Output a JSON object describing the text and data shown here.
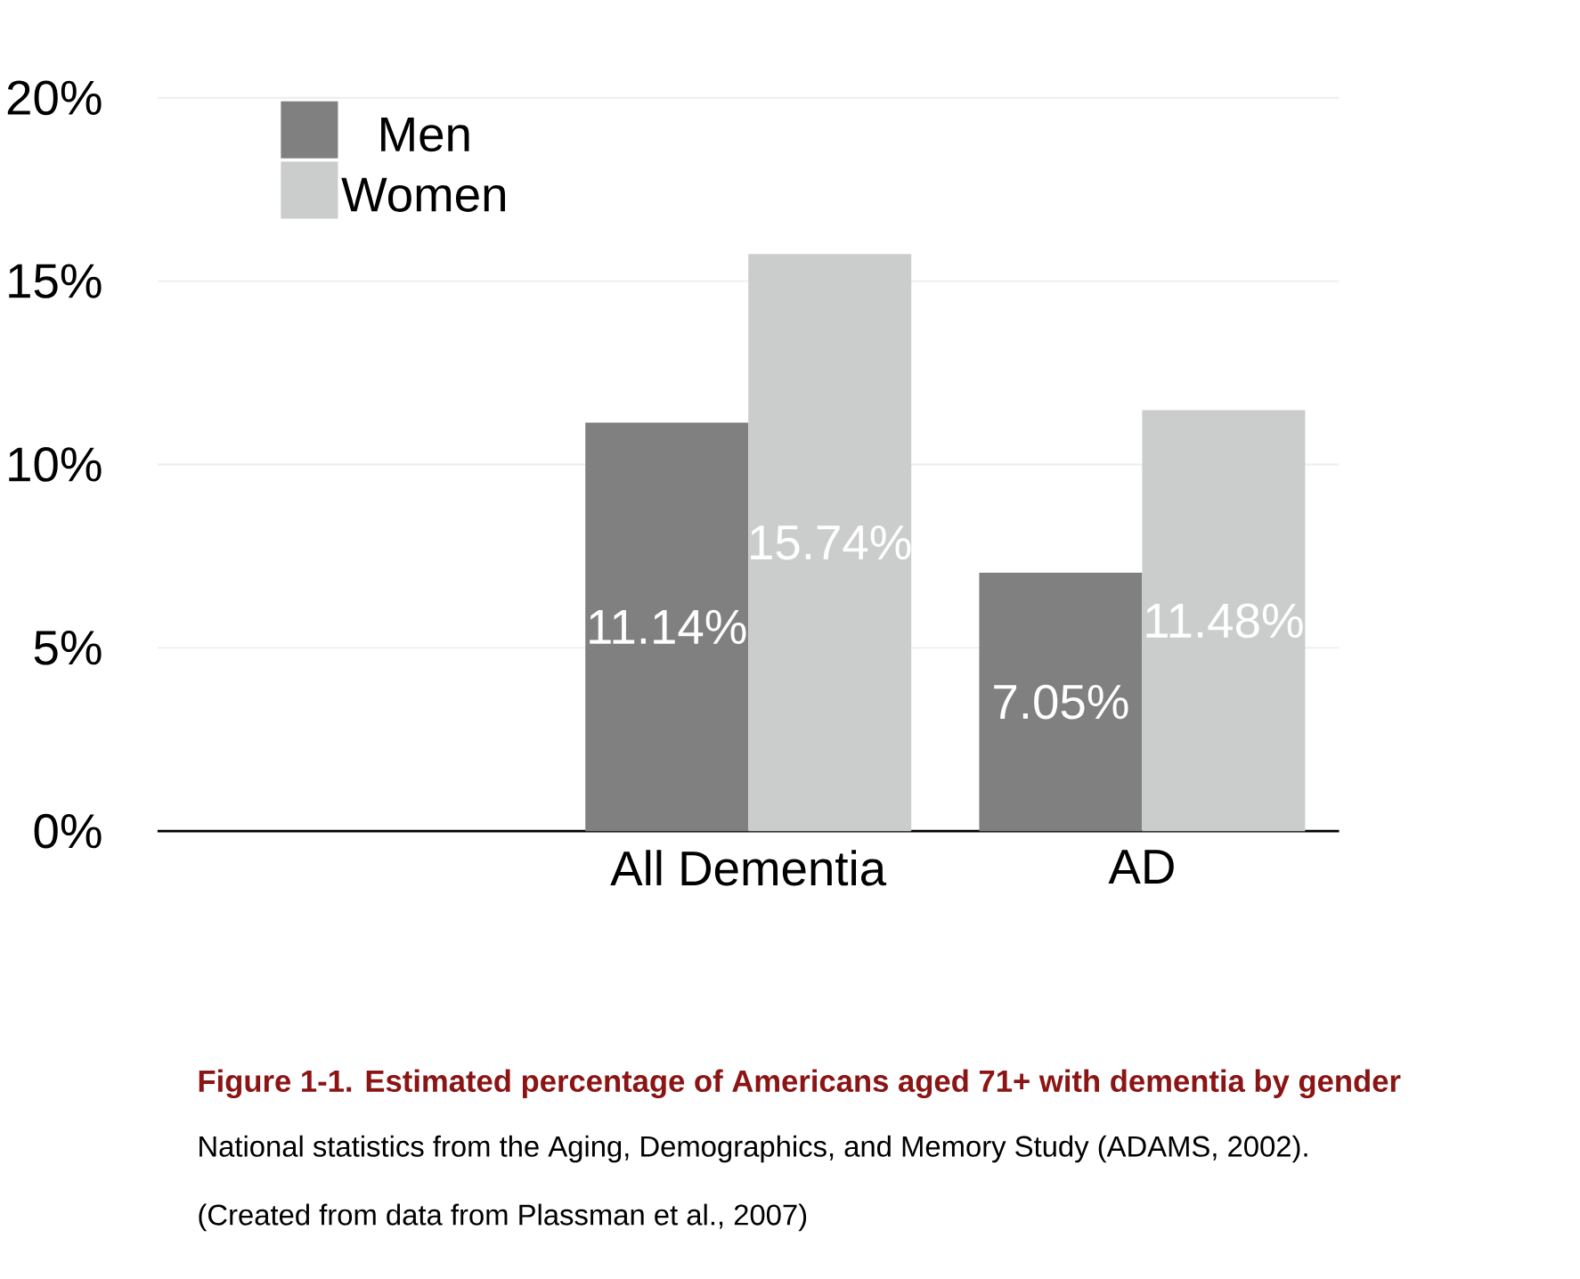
{
  "chart_data": {
    "type": "bar",
    "title": "Figure 1-1. Estimated percentage of Americans aged 71+ with dementia by gender",
    "categories": [
      null,
      "All Dementia",
      "AD"
    ],
    "series": [
      {
        "name": "Men",
        "color": "#808080",
        "values": [
          null,
          11.14,
          7.05
        ],
        "value_labels": [
          null,
          "11.14%",
          "7.05%"
        ]
      },
      {
        "name": "Women",
        "color": "#cbcccc",
        "values": [
          null,
          15.74,
          11.48
        ],
        "value_labels": [
          null,
          "15.74%",
          "11.48%"
        ]
      }
    ],
    "ylim": [
      0,
      20
    ],
    "yticks": [
      {
        "value": 0,
        "label": "0%"
      },
      {
        "value": 5,
        "label": "5%"
      },
      {
        "value": 10,
        "label": "10%"
      },
      {
        "value": 15,
        "label": "15%"
      },
      {
        "value": 20,
        "label": "20%"
      }
    ],
    "grid": "y",
    "legend": "top left",
    "annotations": [
      "National statistics from the Aging, Demographics, and Memory Study (ADAMS, 2002).",
      "(Created from data from Plassman et al., 2007)"
    ]
  }
}
